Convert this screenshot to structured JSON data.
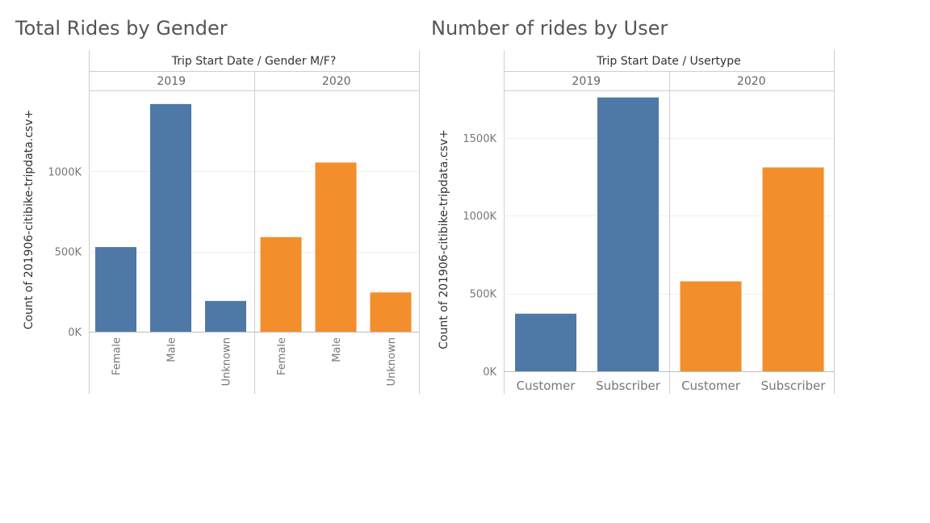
{
  "colors": {
    "y2019": "#4e79a7",
    "y2020": "#f28e2c"
  },
  "chart_data": [
    {
      "type": "bar",
      "title": "Total Rides by Gender",
      "header": "Trip Start Date  /  Gender M/F?",
      "ylabel": "Count of 201906-citibike-tripdata.csv+",
      "ylim": [
        0,
        1500000
      ],
      "yticks": [
        0,
        500000,
        1000000
      ],
      "ytick_labels": [
        "0K",
        "500K",
        "1000K"
      ],
      "grid": true,
      "groups": [
        {
          "name": "2019",
          "categories": [
            "Female",
            "Male",
            "Unknown"
          ],
          "values": [
            528000,
            1420000,
            192000
          ]
        },
        {
          "name": "2020",
          "categories": [
            "Female",
            "Male",
            "Unknown"
          ],
          "values": [
            590000,
            1055000,
            245000
          ]
        }
      ]
    },
    {
      "type": "bar",
      "title": "Number of rides by User",
      "header": "Trip Start Date  /  Usertype",
      "ylabel": "Count of 201906-citibike-tripdata.csv+",
      "ylim": [
        0,
        1800000
      ],
      "yticks": [
        0,
        500000,
        1000000,
        1500000
      ],
      "ytick_labels": [
        "0K",
        "500K",
        "1000K",
        "1500K"
      ],
      "grid": true,
      "groups": [
        {
          "name": "2019",
          "categories": [
            "Customer",
            "Subscriber"
          ],
          "values": [
            370000,
            1760000
          ]
        },
        {
          "name": "2020",
          "categories": [
            "Customer",
            "Subscriber"
          ],
          "values": [
            578000,
            1310000
          ]
        }
      ]
    }
  ]
}
